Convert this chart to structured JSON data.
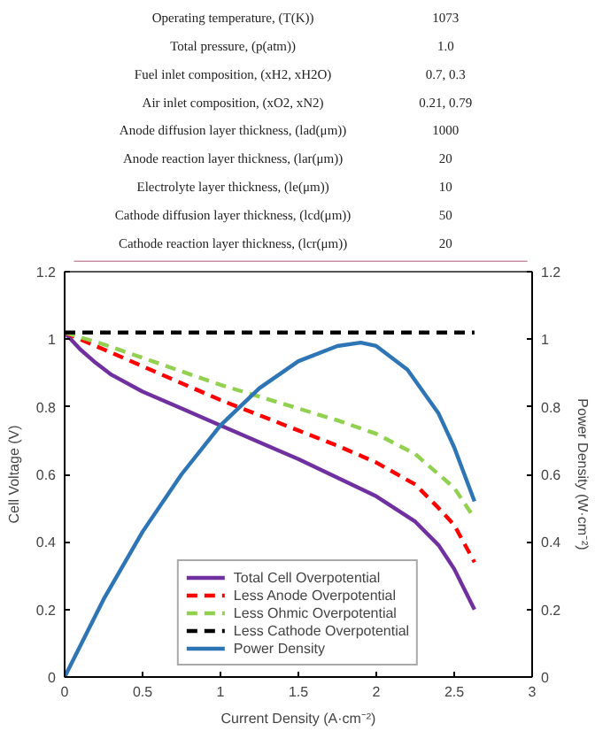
{
  "chart_data": {
    "type": "line",
    "xlabel": "Current Density (A·cm⁻²)",
    "ylabel": "Cell Voltage (V)",
    "y2label": "Power Density (W·cm⁻²)",
    "annotations": [
      "Operating temperature, (T(K))",
      "1073",
      "Total pressure, (p(atm))",
      "1.0",
      "Fuel inlet composition, (xH2, xH2O)",
      "0.7, 0.3",
      "Air inlet composition, (xO2, xN2)",
      "0.21, 0.79",
      "Anode diffusion layer thickness, (lad(μm))",
      "1000",
      "Anode reaction layer thickness, (lar(μm))",
      "20",
      "Electrolyte layer thickness, (le(μm))",
      "10",
      "Cathode diffusion layer thickness, (lcd(μm))",
      "50",
      "Cathode reaction layer thickness, (lcr(μm))",
      "20"
    ],
    "xlim": [
      0,
      3
    ],
    "xticks": [
      0,
      0.5,
      1,
      1.5,
      2,
      2.5,
      3
    ],
    "ylim": [
      0,
      1.2
    ],
    "yticks": [
      0,
      0.2,
      0.4,
      0.6,
      0.8,
      1,
      1.2
    ],
    "y2lim": [
      0,
      1.2
    ],
    "y2ticks": [
      0,
      0.2,
      0.4,
      0.6,
      0.8,
      1,
      1.2
    ],
    "grid": false,
    "legend": "bottom",
    "series": [
      {
        "name": "Total Cell Overpotential",
        "color": "#7030a0",
        "line_style": "solid",
        "x": [
          0,
          0.1,
          0.2,
          0.3,
          0.5,
          0.75,
          1,
          1.25,
          1.5,
          1.75,
          2,
          2.25,
          2.4,
          2.5,
          2.63
        ],
        "values": [
          1.02,
          0.97,
          0.93,
          0.895,
          0.845,
          0.795,
          0.745,
          0.695,
          0.645,
          0.59,
          0.535,
          0.46,
          0.39,
          0.32,
          0.2
        ]
      },
      {
        "name": "Less Anode Overpotential",
        "color": "#ff0000",
        "line_style": "dashed",
        "x": [
          0,
          0.25,
          0.5,
          0.75,
          1,
          1.25,
          1.5,
          1.75,
          2,
          2.25,
          2.4,
          2.5,
          2.63
        ],
        "values": [
          1.02,
          0.97,
          0.92,
          0.87,
          0.82,
          0.775,
          0.73,
          0.685,
          0.635,
          0.57,
          0.5,
          0.45,
          0.34
        ]
      },
      {
        "name": "Less Ohmic Overpotential",
        "color": "#92d050",
        "line_style": "dashed",
        "x": [
          0,
          0.25,
          0.5,
          0.75,
          1,
          1.25,
          1.5,
          1.75,
          2,
          2.25,
          2.4,
          2.5,
          2.63
        ],
        "values": [
          1.02,
          0.985,
          0.945,
          0.905,
          0.865,
          0.83,
          0.795,
          0.76,
          0.72,
          0.66,
          0.6,
          0.56,
          0.47
        ]
      },
      {
        "name": "Less Cathode Overpotential",
        "color": "#000000",
        "line_style": "dashed",
        "x": [
          0,
          2.63
        ],
        "values": [
          1.02,
          1.02
        ]
      },
      {
        "name": "Power Density",
        "color": "#2e75b6",
        "line_style": "solid",
        "axis": "y2",
        "x": [
          0,
          0.25,
          0.5,
          0.75,
          1,
          1.25,
          1.5,
          1.75,
          1.9,
          2,
          2.2,
          2.4,
          2.5,
          2.63
        ],
        "values": [
          0,
          0.23,
          0.43,
          0.6,
          0.745,
          0.855,
          0.935,
          0.98,
          0.99,
          0.98,
          0.91,
          0.78,
          0.68,
          0.52
        ]
      }
    ]
  }
}
